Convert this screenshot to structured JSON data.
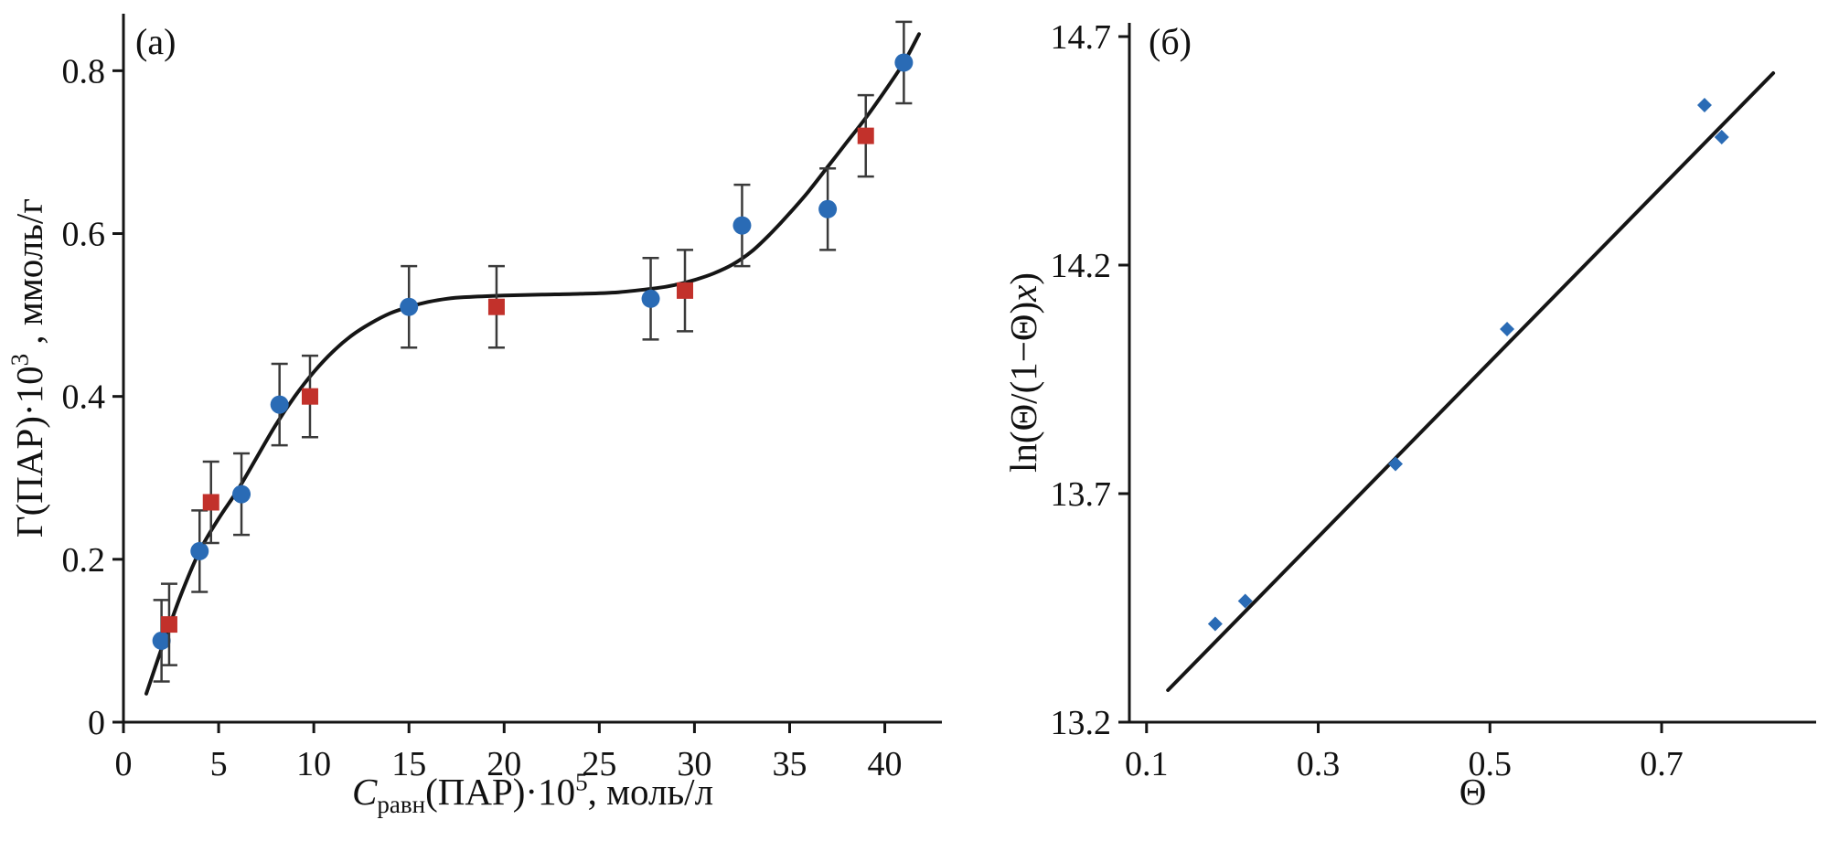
{
  "figure": {
    "background": "#ffffff",
    "axis_color": "#151515",
    "text_color": "#111111",
    "errorbar_color": "#3a3a3a"
  },
  "chart_data": [
    {
      "type": "scatter",
      "panel_label": "(а)",
      "xlabel_parts": [
        {
          "text": "C",
          "style": "italic"
        },
        {
          "text": "равн",
          "style": "sub"
        },
        {
          "text": "(ПАР)·10",
          "style": "normal"
        },
        {
          "text": "5",
          "style": "sup"
        },
        {
          "text": ", моль/л",
          "style": "normal"
        }
      ],
      "ylabel_parts": [
        {
          "text": "Γ(ПАР)·10",
          "style": "normal"
        },
        {
          "text": "3",
          "style": "sup"
        },
        {
          "text": " , ммоль/г",
          "style": "normal"
        }
      ],
      "xlim": [
        0,
        43
      ],
      "ylim": [
        0,
        0.87
      ],
      "xticks": [
        0,
        5,
        10,
        15,
        20,
        25,
        30,
        35,
        40
      ],
      "xtick_labels": [
        "0",
        "5",
        "10",
        "15",
        "20",
        "25",
        "30",
        "35",
        "40"
      ],
      "yticks": [
        0,
        0.2,
        0.4,
        0.6,
        0.8
      ],
      "ytick_labels": [
        "0",
        "0.2",
        "0.4",
        "0.6",
        "0.8"
      ],
      "series": [
        {
          "name": "circles-blue",
          "marker": "circle",
          "color": "#2a6bb5",
          "yerr": 0.05,
          "points": [
            [
              2,
              0.1
            ],
            [
              4,
              0.21
            ],
            [
              6.2,
              0.28
            ],
            [
              8.2,
              0.39
            ],
            [
              15,
              0.51
            ],
            [
              27.7,
              0.52
            ],
            [
              32.5,
              0.61
            ],
            [
              37,
              0.63
            ],
            [
              41,
              0.81
            ]
          ]
        },
        {
          "name": "squares-red",
          "marker": "square",
          "color": "#c2312b",
          "yerr": 0.05,
          "points": [
            [
              2.4,
              0.12
            ],
            [
              4.6,
              0.27
            ],
            [
              9.8,
              0.4
            ],
            [
              19.6,
              0.51
            ],
            [
              29.5,
              0.53
            ],
            [
              39,
              0.72
            ]
          ]
        }
      ],
      "fit_curve": {
        "color": "#151515",
        "points": [
          [
            1.2,
            0.035
          ],
          [
            2,
            0.09
          ],
          [
            3,
            0.155
          ],
          [
            4,
            0.21
          ],
          [
            5,
            0.25
          ],
          [
            6,
            0.285
          ],
          [
            7,
            0.325
          ],
          [
            8,
            0.365
          ],
          [
            9,
            0.4
          ],
          [
            10,
            0.43
          ],
          [
            11,
            0.455
          ],
          [
            12,
            0.475
          ],
          [
            13,
            0.49
          ],
          [
            14,
            0.502
          ],
          [
            15,
            0.51
          ],
          [
            16,
            0.516
          ],
          [
            17,
            0.52
          ],
          [
            18,
            0.522
          ],
          [
            20,
            0.524
          ],
          [
            22,
            0.525
          ],
          [
            24,
            0.526
          ],
          [
            26,
            0.528
          ],
          [
            28,
            0.533
          ],
          [
            29,
            0.537
          ],
          [
            30,
            0.543
          ],
          [
            31,
            0.551
          ],
          [
            32,
            0.562
          ],
          [
            33,
            0.578
          ],
          [
            34,
            0.6
          ],
          [
            35,
            0.625
          ],
          [
            36,
            0.652
          ],
          [
            37,
            0.682
          ],
          [
            38,
            0.712
          ],
          [
            39,
            0.742
          ],
          [
            40,
            0.775
          ],
          [
            41,
            0.81
          ],
          [
            41.8,
            0.845
          ]
        ]
      }
    },
    {
      "type": "scatter",
      "panel_label": "(б)",
      "xlabel_parts": [
        {
          "text": "Θ",
          "style": "normal"
        }
      ],
      "ylabel_parts": [
        {
          "text": "ln(Θ/(1−Θ)",
          "style": "normal"
        },
        {
          "text": "x",
          "style": "italic"
        },
        {
          "text": ")",
          "style": "normal"
        }
      ],
      "xlim": [
        0.08,
        0.88
      ],
      "ylim": [
        13.2,
        14.73
      ],
      "xticks": [
        0.1,
        0.3,
        0.5,
        0.7
      ],
      "xtick_labels": [
        "0.1",
        "0.3",
        "0.5",
        "0.7"
      ],
      "yticks": [
        13.2,
        13.7,
        14.2,
        14.7
      ],
      "ytick_labels": [
        "13.2",
        "13.7",
        "14.2",
        "14.7"
      ],
      "series": [
        {
          "name": "diamonds-blue",
          "marker": "diamond",
          "color": "#2a6bb5",
          "points": [
            [
              0.18,
              13.415
            ],
            [
              0.215,
              13.465
            ],
            [
              0.39,
              13.765
            ],
            [
              0.52,
              14.06
            ],
            [
              0.75,
              14.55
            ],
            [
              0.77,
              14.48
            ]
          ]
        }
      ],
      "fit_curve": {
        "color": "#151515",
        "points": [
          [
            0.125,
            13.27
          ],
          [
            0.83,
            14.62
          ]
        ]
      }
    }
  ]
}
